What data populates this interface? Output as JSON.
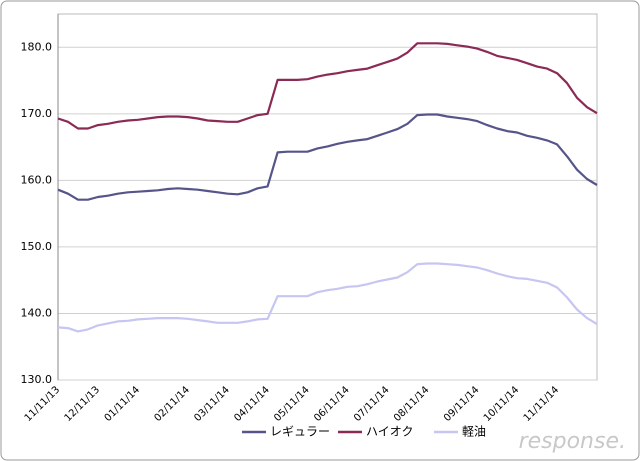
{
  "chart_data": {
    "type": "line",
    "categories": [
      "11/11/13",
      null,
      null,
      null,
      "12/11/13",
      null,
      null,
      null,
      "01/11/14",
      null,
      null,
      null,
      null,
      "02/11/14",
      null,
      null,
      null,
      "03/11/14",
      null,
      null,
      null,
      "04/11/14",
      null,
      null,
      null,
      "05/11/14",
      null,
      null,
      null,
      "06/11/14",
      null,
      null,
      null,
      "07/11/14",
      null,
      null,
      null,
      "08/11/14",
      null,
      null,
      null,
      null,
      "09/11/14",
      null,
      null,
      null,
      "10/11/14",
      null,
      null,
      null,
      "11/11/14",
      null,
      null,
      null,
      null
    ],
    "series": [
      {
        "name": "レギュラー",
        "color": "#55558a",
        "values": [
          158.6,
          158.0,
          157.1,
          157.1,
          157.5,
          157.7,
          158.0,
          158.2,
          158.3,
          158.4,
          158.5,
          158.7,
          158.8,
          158.7,
          158.6,
          158.4,
          158.2,
          158.0,
          157.9,
          158.2,
          158.8,
          159.1,
          164.2,
          164.3,
          164.3,
          164.3,
          164.8,
          165.1,
          165.5,
          165.8,
          166.0,
          166.2,
          166.7,
          167.2,
          167.7,
          168.5,
          169.8,
          169.9,
          169.9,
          169.6,
          169.4,
          169.2,
          168.9,
          168.3,
          167.8,
          167.4,
          167.2,
          166.7,
          166.4,
          166.0,
          165.4,
          163.6,
          161.6,
          160.2,
          159.3
        ]
      },
      {
        "name": "ハイオク",
        "color": "#8c2a56",
        "values": [
          169.3,
          168.8,
          167.8,
          167.8,
          168.3,
          168.5,
          168.8,
          169.0,
          169.1,
          169.3,
          169.5,
          169.6,
          169.6,
          169.5,
          169.3,
          169.0,
          168.9,
          168.8,
          168.8,
          169.3,
          169.8,
          170.0,
          175.1,
          175.1,
          175.1,
          175.2,
          175.6,
          175.9,
          176.1,
          176.4,
          176.6,
          176.8,
          177.3,
          177.8,
          178.3,
          179.2,
          180.6,
          180.6,
          180.6,
          180.5,
          180.3,
          180.1,
          179.8,
          179.3,
          178.7,
          178.4,
          178.1,
          177.6,
          177.1,
          176.8,
          176.1,
          174.6,
          172.4,
          171.0,
          170.1
        ]
      },
      {
        "name": "軽油",
        "color": "#c6c6f2",
        "values": [
          137.9,
          137.8,
          137.3,
          137.6,
          138.2,
          138.5,
          138.8,
          138.9,
          139.1,
          139.2,
          139.3,
          139.3,
          139.3,
          139.2,
          139.0,
          138.8,
          138.6,
          138.6,
          138.6,
          138.8,
          139.1,
          139.2,
          142.6,
          142.6,
          142.6,
          142.6,
          143.2,
          143.5,
          143.7,
          144.0,
          144.1,
          144.4,
          144.8,
          145.1,
          145.4,
          146.2,
          147.4,
          147.5,
          147.5,
          147.4,
          147.3,
          147.1,
          146.9,
          146.5,
          146.0,
          145.6,
          145.3,
          145.2,
          144.9,
          144.6,
          143.9,
          142.4,
          140.6,
          139.3,
          138.4
        ]
      }
    ],
    "ylim": [
      130,
      185
    ],
    "yticks": [
      {
        "value": 130,
        "label": "130.0"
      },
      {
        "value": 140,
        "label": "140.0"
      },
      {
        "value": 150,
        "label": "150.0"
      },
      {
        "value": 160,
        "label": "160.0"
      },
      {
        "value": 170,
        "label": "170.0"
      },
      {
        "value": 180,
        "label": "180.0"
      }
    ],
    "grid": true,
    "legend": "bottom",
    "watermark": "response."
  }
}
